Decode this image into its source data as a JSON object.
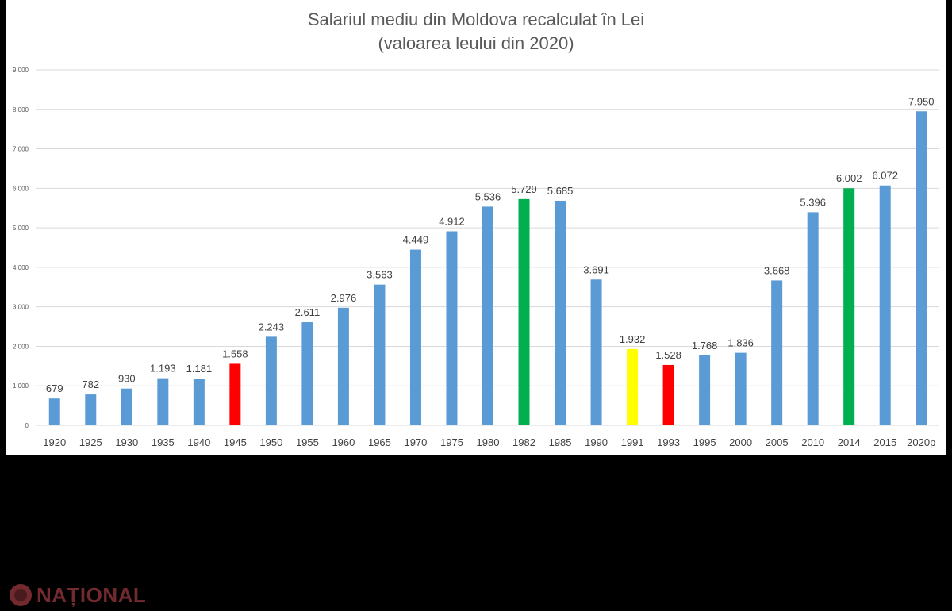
{
  "chart_data": {
    "type": "bar",
    "title": "Salariul mediu din Moldova recalculat în Lei",
    "subtitle": "(valoarea leului din 2020)",
    "xlabel": "",
    "ylabel": "",
    "ylim": [
      0,
      9000
    ],
    "y_ticks": [
      "0",
      "1.000",
      "2.000",
      "3.000",
      "4.000",
      "5.000",
      "6.000",
      "7.000",
      "8.000",
      "9.000"
    ],
    "grid": true,
    "legend": "none",
    "categories": [
      "1920",
      "1925",
      "1930",
      "1935",
      "1940",
      "1945",
      "1950",
      "1955",
      "1960",
      "1965",
      "1970",
      "1975",
      "1980",
      "1982",
      "1985",
      "1990",
      "1991",
      "1993",
      "1995",
      "2000",
      "2005",
      "2010",
      "2014",
      "2015",
      "2020p"
    ],
    "values": [
      679,
      782,
      930,
      1193,
      1181,
      1558,
      2243,
      2611,
      2976,
      3563,
      4449,
      4912,
      5536,
      5729,
      5685,
      3691,
      1932,
      1528,
      1768,
      1836,
      3668,
      5396,
      6002,
      6072,
      7950
    ],
    "value_labels": [
      "679",
      "782",
      "930",
      "1.193",
      "1.181",
      "1.558",
      "2.243",
      "2.611",
      "2.976",
      "3.563",
      "4.449",
      "4.912",
      "5.536",
      "5.729",
      "5.685",
      "3.691",
      "1.932",
      "1.528",
      "1.768",
      "1.836",
      "3.668",
      "5.396",
      "6.002",
      "6.072",
      "7.950"
    ],
    "bar_colors": [
      "#5b9bd5",
      "#5b9bd5",
      "#5b9bd5",
      "#5b9bd5",
      "#5b9bd5",
      "#ff0000",
      "#5b9bd5",
      "#5b9bd5",
      "#5b9bd5",
      "#5b9bd5",
      "#5b9bd5",
      "#5b9bd5",
      "#5b9bd5",
      "#00b050",
      "#5b9bd5",
      "#5b9bd5",
      "#ffff00",
      "#ff0000",
      "#5b9bd5",
      "#5b9bd5",
      "#5b9bd5",
      "#5b9bd5",
      "#00b050",
      "#5b9bd5",
      "#5b9bd5"
    ]
  },
  "watermark": {
    "text": "NAȚIONAL",
    "color": "#d24d57"
  }
}
